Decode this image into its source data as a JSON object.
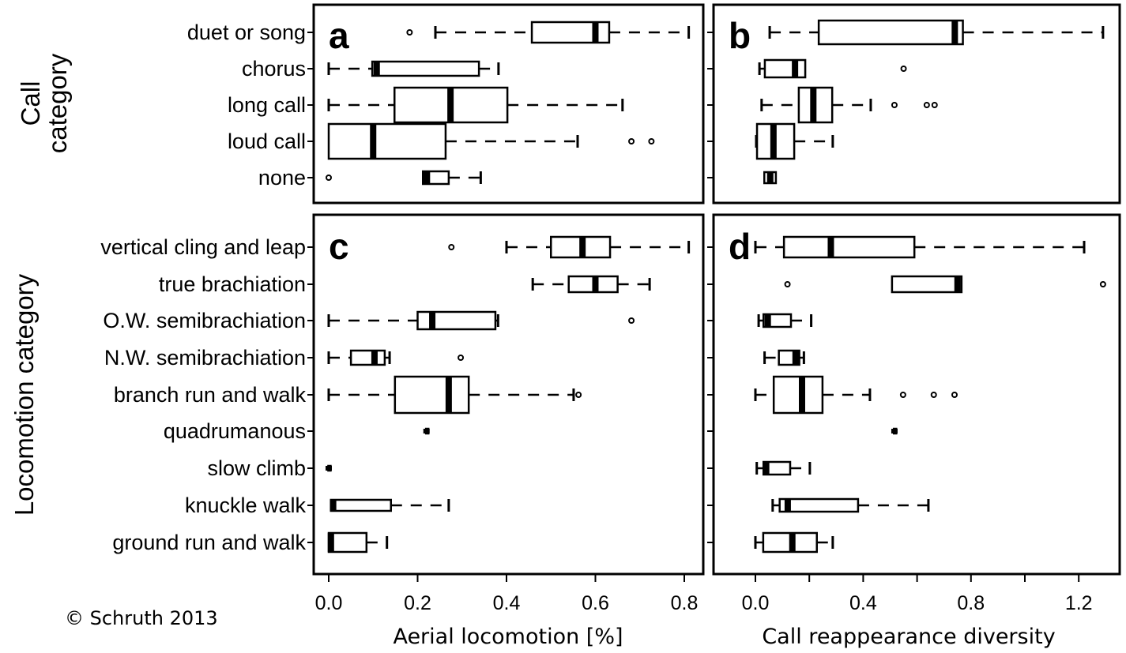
{
  "copyright": "© Schruth 2013",
  "chart_data": [
    {
      "type": "boxplot",
      "panel": "a",
      "ylabel": "Call category",
      "xlabel": "",
      "xlim": [
        -0.02,
        0.84
      ],
      "categories": [
        "duet or song",
        "chorus",
        "long call",
        "loud call",
        "none"
      ],
      "boxes": [
        {
          "lo": 0.24,
          "q1": 0.457,
          "med": 0.6,
          "q3": 0.631,
          "hi": 0.81,
          "outliers": [
            0.182
          ]
        },
        {
          "lo": 0.0,
          "q1": 0.098,
          "med": 0.108,
          "q3": 0.338,
          "hi": 0.382,
          "outliers": []
        },
        {
          "lo": 0.0,
          "q1": 0.148,
          "med": 0.274,
          "q3": 0.402,
          "hi": 0.661,
          "outliers": []
        },
        {
          "lo": 0.0,
          "q1": 0.0,
          "med": 0.1,
          "q3": 0.263,
          "hi": 0.56,
          "outliers": [
            0.681,
            0.726
          ]
        },
        {
          "lo": 0.212,
          "q1": 0.212,
          "med": 0.221,
          "q3": 0.27,
          "hi": 0.342,
          "outliers": [
            0.0
          ]
        }
      ]
    },
    {
      "type": "boxplot",
      "panel": "b",
      "ylabel": "",
      "xlabel": "",
      "xlim": [
        -0.03,
        1.34
      ],
      "categories": [
        "duet or song",
        "chorus",
        "long call",
        "loud call",
        "none"
      ],
      "boxes": [
        {
          "lo": 0.053,
          "q1": 0.235,
          "med": 0.74,
          "q3": 0.77,
          "hi": 1.29,
          "outliers": []
        },
        {
          "lo": 0.015,
          "q1": 0.035,
          "med": 0.147,
          "q3": 0.185,
          "hi": 0.185,
          "outliers": [
            0.55
          ]
        },
        {
          "lo": 0.023,
          "q1": 0.161,
          "med": 0.215,
          "q3": 0.285,
          "hi": 0.428,
          "outliers": [
            0.516,
            0.636,
            0.665
          ]
        },
        {
          "lo": 0.003,
          "q1": 0.006,
          "med": 0.067,
          "q3": 0.144,
          "hi": 0.287,
          "outliers": []
        },
        {
          "lo": 0.033,
          "q1": 0.033,
          "med": 0.055,
          "q3": 0.076,
          "hi": 0.076,
          "outliers": []
        }
      ]
    },
    {
      "type": "boxplot",
      "panel": "c",
      "ylabel": "Locomotion category",
      "xlabel": "Aerial locomotion [%]",
      "xlim": [
        -0.02,
        0.84
      ],
      "xticks": [
        0.0,
        0.2,
        0.4,
        0.6,
        0.8
      ],
      "xtick_labels": [
        "0.0",
        "0.2",
        "0.4",
        "0.6",
        "0.8"
      ],
      "categories": [
        "vertical cling and leap",
        "true brachiation",
        "O.W. semibrachiation",
        "N.W. semibrachiation",
        "branch run and walk",
        "quadrumanous",
        "slow climb",
        "knuckle walk",
        "ground run and walk"
      ],
      "boxes": [
        {
          "lo": 0.4,
          "q1": 0.5,
          "med": 0.571,
          "q3": 0.633,
          "hi": 0.81,
          "outliers": [
            0.276
          ]
        },
        {
          "lo": 0.459,
          "q1": 0.54,
          "med": 0.6,
          "q3": 0.65,
          "hi": 0.722,
          "outliers": []
        },
        {
          "lo": 0.0,
          "q1": 0.2,
          "med": 0.233,
          "q3": 0.375,
          "hi": 0.381,
          "outliers": [
            0.681
          ]
        },
        {
          "lo": 0.0,
          "q1": 0.05,
          "med": 0.103,
          "q3": 0.126,
          "hi": 0.137,
          "outliers": [
            0.297
          ]
        },
        {
          "lo": 0.0,
          "q1": 0.149,
          "med": 0.27,
          "q3": 0.315,
          "hi": 0.551,
          "outliers": [
            0.562
          ]
        },
        {
          "lo": 0.22,
          "q1": 0.219,
          "med": 0.22,
          "q3": 0.221,
          "hi": 0.22,
          "outliers": []
        },
        {
          "lo": 0.0,
          "q1": -0.001,
          "med": 0.0,
          "q3": 0.001,
          "hi": 0.0,
          "outliers": []
        },
        {
          "lo": 0.005,
          "q1": 0.005,
          "med": 0.01,
          "q3": 0.14,
          "hi": 0.27,
          "outliers": []
        },
        {
          "lo": 0.0,
          "q1": 0.0,
          "med": 0.005,
          "q3": 0.085,
          "hi": 0.131,
          "outliers": []
        }
      ]
    },
    {
      "type": "boxplot",
      "panel": "d",
      "ylabel": "",
      "xlabel": "Call reappearance diversity",
      "xlim": [
        -0.03,
        1.34
      ],
      "xticks": [
        0.0,
        0.2,
        0.4,
        0.6,
        0.8,
        1.0,
        1.2
      ],
      "xtick_labels": [
        "0.0",
        "",
        "0.4",
        "",
        "0.8",
        "",
        "1.2"
      ],
      "categories": [
        "vertical cling and leap",
        "true brachiation",
        "O.W. semibrachiation",
        "N.W. semibrachiation",
        "branch run and walk",
        "quadrumanous",
        "slow climb",
        "knuckle walk",
        "ground run and walk"
      ],
      "boxes": [
        {
          "lo": 0.0,
          "q1": 0.106,
          "med": 0.28,
          "q3": 0.59,
          "hi": 1.22,
          "outliers": []
        },
        {
          "lo": 0.507,
          "q1": 0.507,
          "med": 0.75,
          "q3": 0.765,
          "hi": 0.765,
          "outliers": [
            0.119,
            1.29
          ]
        },
        {
          "lo": 0.012,
          "q1": 0.03,
          "med": 0.046,
          "q3": 0.132,
          "hi": 0.207,
          "outliers": []
        },
        {
          "lo": 0.034,
          "q1": 0.087,
          "med": 0.149,
          "q3": 0.163,
          "hi": 0.18,
          "outliers": []
        },
        {
          "lo": 0.0,
          "q1": 0.068,
          "med": 0.173,
          "q3": 0.249,
          "hi": 0.425,
          "outliers": [
            0.548,
            0.662,
            0.739
          ]
        },
        {
          "lo": 0.516,
          "q1": 0.514,
          "med": 0.516,
          "q3": 0.518,
          "hi": 0.516,
          "outliers": []
        },
        {
          "lo": 0.005,
          "q1": 0.03,
          "med": 0.04,
          "q3": 0.129,
          "hi": 0.202,
          "outliers": []
        },
        {
          "lo": 0.064,
          "q1": 0.09,
          "med": 0.12,
          "q3": 0.381,
          "hi": 0.642,
          "outliers": []
        },
        {
          "lo": 0.0,
          "q1": 0.029,
          "med": 0.137,
          "q3": 0.228,
          "hi": 0.287,
          "outliers": []
        }
      ]
    }
  ]
}
